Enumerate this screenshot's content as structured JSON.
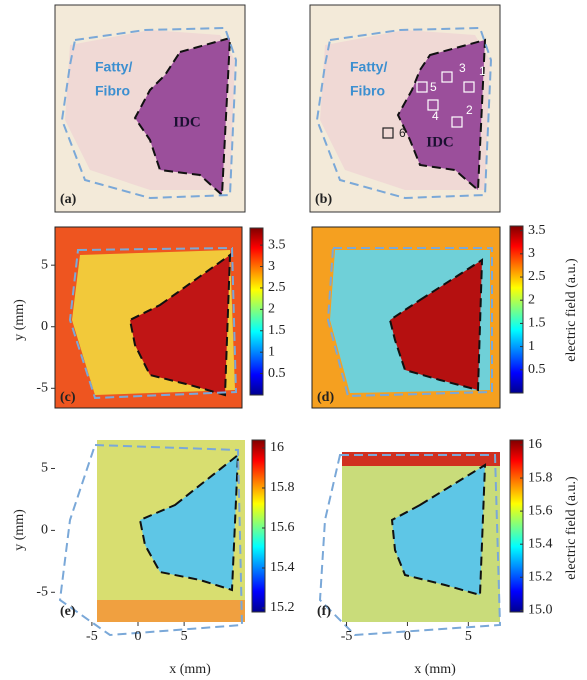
{
  "photos": [
    {
      "label": "(a)",
      "tissue": [
        "Fatty/",
        "Fibro"
      ],
      "tumor": "IDC"
    },
    {
      "label": "(b)",
      "tissue": [
        "Fatty/",
        "Fibro"
      ],
      "tumor": "IDC",
      "regions": [
        "1",
        "2",
        "3",
        "4",
        "5",
        "6"
      ]
    }
  ],
  "maps": [
    {
      "label": "(c)",
      "ylim": [
        -6.6,
        8.1
      ],
      "yticks": [
        5,
        0,
        -5
      ],
      "colorbar": {
        "lim": [
          0,
          3.9
        ],
        "ticks": [
          3.5,
          3,
          2.5,
          2,
          1.5,
          1,
          0.5
        ]
      }
    },
    {
      "label": "(d)",
      "colorbar": {
        "lim": [
          0,
          3.6
        ],
        "ticks": [
          3.5,
          3,
          2.5,
          2,
          1.5,
          1,
          0.5
        ]
      }
    },
    {
      "label": "(e)",
      "ylim": [
        -7.4,
        7.3
      ],
      "yticks": [
        5,
        0,
        -5
      ],
      "xlim": [
        -9,
        11.6
      ],
      "xticks": [
        -5,
        0,
        5
      ],
      "colorbar": {
        "lim": [
          15.18,
          16.04
        ],
        "ticks": [
          16,
          15.8,
          15.6,
          15.4,
          15.2
        ]
      }
    },
    {
      "label": "(f)",
      "xlim": [
        -8,
        7.6
      ],
      "xticks": [
        -5,
        0,
        5
      ],
      "colorbar": {
        "lim": [
          14.99,
          16.03
        ],
        "ticks": [
          16,
          15.8,
          15.6,
          15.4,
          15.2,
          {
            "value": 15,
            "label": "15.0"
          }
        ]
      }
    }
  ],
  "y_label": "y (mm)",
  "x_label": "x (mm)",
  "colorbar_label": "electric field (a.u.)"
}
